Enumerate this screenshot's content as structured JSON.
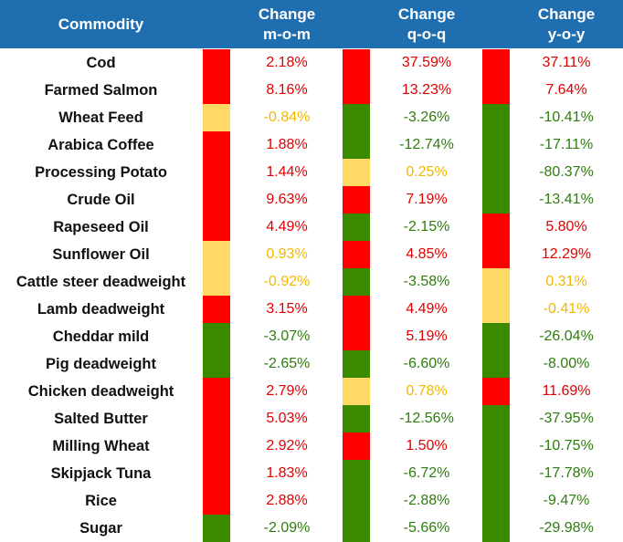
{
  "colors": {
    "header_bg": "#1f6fb0",
    "red": "#ff0000",
    "green": "#3a8a00",
    "amber": "#ffd966",
    "text_red": "#e00000",
    "text_green": "#2e7d0e",
    "text_amber": "#f0b800"
  },
  "header": {
    "commodity": "Commodity",
    "col1_line1": "Change",
    "col1_line2": "m-o-m",
    "col2_line1": "Change",
    "col2_line2": "q-o-q",
    "col3_line1": "Change",
    "col3_line2": "y-o-y"
  },
  "chart_data": {
    "type": "table",
    "columns": [
      "Commodity",
      "Change m-o-m",
      "Change q-o-q",
      "Change y-o-y"
    ],
    "rows": [
      {
        "commodity": "Cod",
        "mom": "2.18%",
        "qoq": "37.59%",
        "yoy": "37.11%",
        "mom_status": "red",
        "qoq_status": "red",
        "yoy_status": "red"
      },
      {
        "commodity": "Farmed Salmon",
        "mom": "8.16%",
        "qoq": "13.23%",
        "yoy": "7.64%",
        "mom_status": "red",
        "qoq_status": "red",
        "yoy_status": "red"
      },
      {
        "commodity": "Wheat Feed",
        "mom": "-0.84%",
        "qoq": "-3.26%",
        "yoy": "-10.41%",
        "mom_status": "amber",
        "qoq_status": "green",
        "yoy_status": "green"
      },
      {
        "commodity": "Arabica Coffee",
        "mom": "1.88%",
        "qoq": "-12.74%",
        "yoy": "-17.11%",
        "mom_status": "red",
        "qoq_status": "green",
        "yoy_status": "green"
      },
      {
        "commodity": "Processing Potato",
        "mom": "1.44%",
        "qoq": "0.25%",
        "yoy": "-80.37%",
        "mom_status": "red",
        "qoq_status": "amber",
        "yoy_status": "green"
      },
      {
        "commodity": "Crude Oil",
        "mom": "9.63%",
        "qoq": "7.19%",
        "yoy": "-13.41%",
        "mom_status": "red",
        "qoq_status": "red",
        "yoy_status": "green"
      },
      {
        "commodity": "Rapeseed Oil",
        "mom": "4.49%",
        "qoq": "-2.15%",
        "yoy": "5.80%",
        "mom_status": "red",
        "qoq_status": "green",
        "yoy_status": "red"
      },
      {
        "commodity": "Sunflower Oil",
        "mom": "0.93%",
        "qoq": "4.85%",
        "yoy": "12.29%",
        "mom_status": "amber",
        "qoq_status": "red",
        "yoy_status": "red"
      },
      {
        "commodity": "Cattle steer deadweight",
        "mom": "-0.92%",
        "qoq": "-3.58%",
        "yoy": "0.31%",
        "mom_status": "amber",
        "qoq_status": "green",
        "yoy_status": "amber"
      },
      {
        "commodity": "Lamb deadweight",
        "mom": "3.15%",
        "qoq": "4.49%",
        "yoy": "-0.41%",
        "mom_status": "red",
        "qoq_status": "red",
        "yoy_status": "amber"
      },
      {
        "commodity": "Cheddar mild",
        "mom": "-3.07%",
        "qoq": "5.19%",
        "yoy": "-26.04%",
        "mom_status": "green",
        "qoq_status": "red",
        "yoy_status": "green"
      },
      {
        "commodity": "Pig deadweight",
        "mom": "-2.65%",
        "qoq": "-6.60%",
        "yoy": "-8.00%",
        "mom_status": "green",
        "qoq_status": "green",
        "yoy_status": "green"
      },
      {
        "commodity": "Chicken deadweight",
        "mom": "2.79%",
        "qoq": "0.78%",
        "yoy": "11.69%",
        "mom_status": "red",
        "qoq_status": "amber",
        "yoy_status": "red"
      },
      {
        "commodity": "Salted Butter",
        "mom": "5.03%",
        "qoq": "-12.56%",
        "yoy": "-37.95%",
        "mom_status": "red",
        "qoq_status": "green",
        "yoy_status": "green"
      },
      {
        "commodity": "Milling Wheat",
        "mom": "2.92%",
        "qoq": "1.50%",
        "yoy": "-10.75%",
        "mom_status": "red",
        "qoq_status": "red",
        "yoy_status": "green"
      },
      {
        "commodity": "Skipjack Tuna",
        "mom": "1.83%",
        "qoq": "-6.72%",
        "yoy": "-17.78%",
        "mom_status": "red",
        "qoq_status": "green",
        "yoy_status": "green"
      },
      {
        "commodity": "Rice",
        "mom": "2.88%",
        "qoq": "-2.88%",
        "yoy": "-9.47%",
        "mom_status": "red",
        "qoq_status": "green",
        "yoy_status": "green"
      },
      {
        "commodity": "Sugar",
        "mom": "-2.09%",
        "qoq": "-5.66%",
        "yoy": "-29.98%",
        "mom_status": "green",
        "qoq_status": "green",
        "yoy_status": "green"
      }
    ]
  }
}
